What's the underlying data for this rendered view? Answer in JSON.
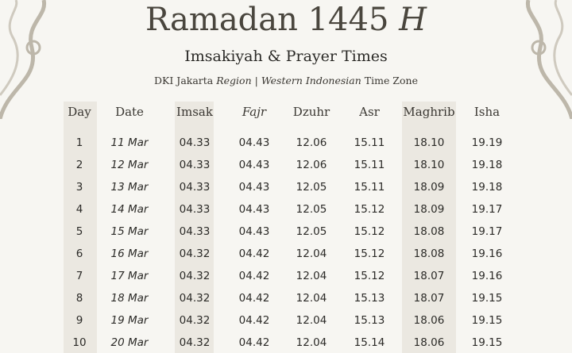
{
  "title": {
    "main": "Ramadan 1445",
    "suffix": "H"
  },
  "subtitle": "Imsakiyah & Prayer Times",
  "zone": {
    "region": "DKI Jakarta",
    "region_word": "Region",
    "sep": "|",
    "tz1": "Western Indonesian",
    "tz2": "Time Zone"
  },
  "colors": {
    "background": "#f7f6f2",
    "shade": "#ebe8e1",
    "text": "#2b2a27"
  },
  "table": {
    "headers": [
      "Day",
      "Date",
      "Imsak",
      "Fajr",
      "Dzuhr",
      "Asr",
      "Maghrib",
      "Isha"
    ],
    "rows": [
      [
        "1",
        "11 Mar",
        "04.33",
        "04.43",
        "12.06",
        "15.11",
        "18.10",
        "19.19"
      ],
      [
        "2",
        "12 Mar",
        "04.33",
        "04.43",
        "12.06",
        "15.11",
        "18.10",
        "19.18"
      ],
      [
        "3",
        "13 Mar",
        "04.33",
        "04.43",
        "12.05",
        "15.11",
        "18.09",
        "19.18"
      ],
      [
        "4",
        "14 Mar",
        "04.33",
        "04.43",
        "12.05",
        "15.12",
        "18.09",
        "19.17"
      ],
      [
        "5",
        "15 Mar",
        "04.33",
        "04.43",
        "12.05",
        "15.12",
        "18.08",
        "19.17"
      ],
      [
        "6",
        "16 Mar",
        "04.32",
        "04.42",
        "12.04",
        "15.12",
        "18.08",
        "19.16"
      ],
      [
        "7",
        "17 Mar",
        "04.32",
        "04.42",
        "12.04",
        "15.12",
        "18.07",
        "19.16"
      ],
      [
        "8",
        "18 Mar",
        "04.32",
        "04.42",
        "12.04",
        "15.13",
        "18.07",
        "19.15"
      ],
      [
        "9",
        "19 Mar",
        "04.32",
        "04.42",
        "12.04",
        "15.13",
        "18.06",
        "19.15"
      ],
      [
        "10",
        "20 Mar",
        "04.32",
        "04.42",
        "12.04",
        "15.14",
        "18.06",
        "19.15"
      ]
    ]
  }
}
